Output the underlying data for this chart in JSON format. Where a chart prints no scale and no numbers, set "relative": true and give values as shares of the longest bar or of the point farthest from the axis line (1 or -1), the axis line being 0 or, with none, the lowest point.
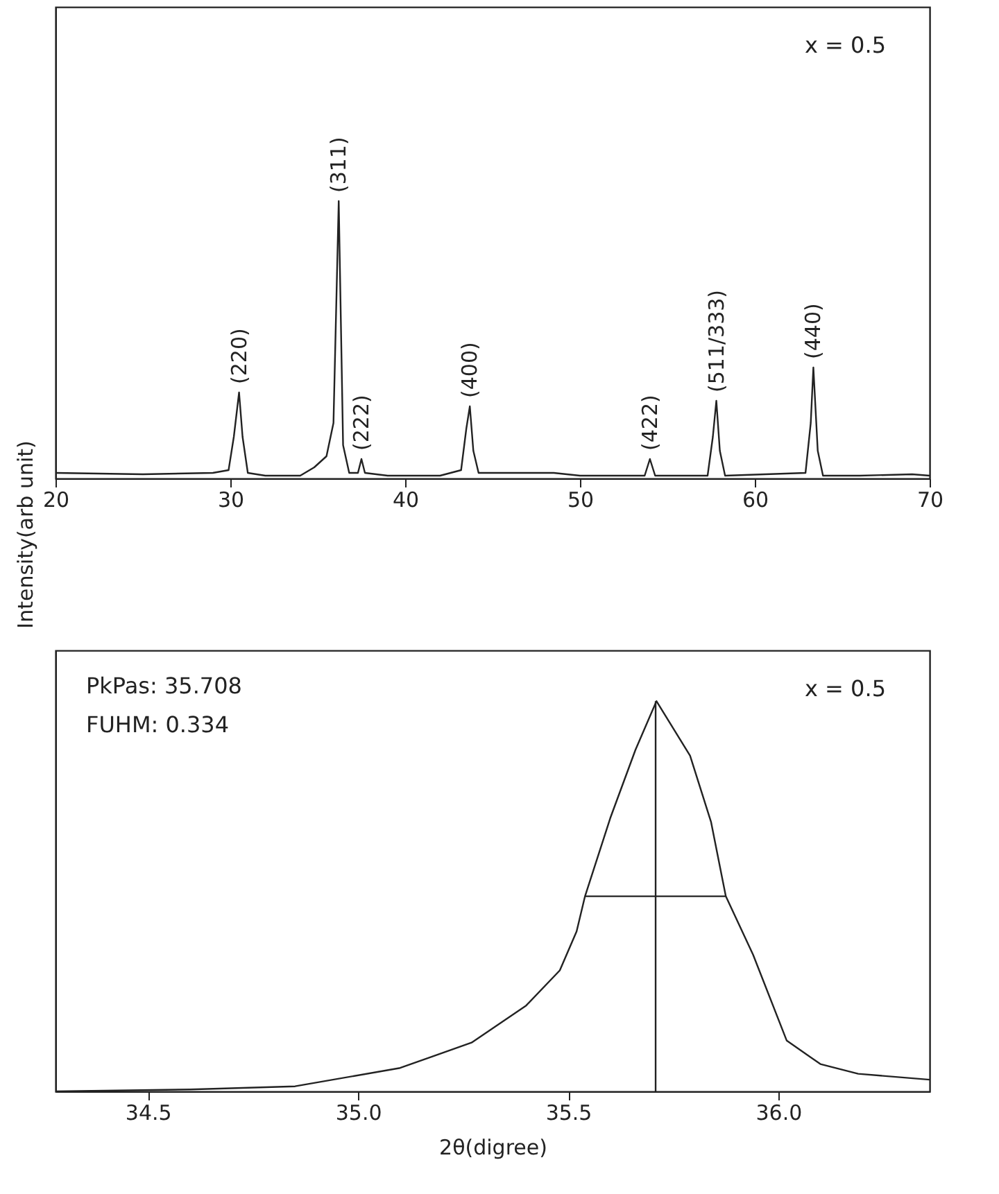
{
  "chart_data": [
    {
      "type": "line",
      "relative": true,
      "ylabel": "Intensity(arb unit)",
      "xlim": [
        20,
        70
      ],
      "xticks": [
        20,
        30,
        40,
        50,
        60,
        70
      ],
      "tick_labels": "x",
      "grid": false,
      "marker": "none",
      "line_style": "solid",
      "series": [
        {
          "color": "#222222",
          "x": [
            20,
            25,
            29,
            29.9,
            30.2,
            30.5,
            30.7,
            31.0,
            32,
            34,
            34.8,
            35.5,
            35.9,
            36.2,
            36.45,
            36.8,
            37.3,
            37.5,
            37.7,
            39,
            42,
            43.2,
            43.5,
            43.7,
            43.9,
            44.2,
            48.5,
            50,
            53.7,
            54.0,
            54.3,
            57.3,
            57.6,
            57.8,
            58.0,
            58.3,
            62.9,
            63.2,
            63.35,
            63.6,
            63.9,
            66,
            69,
            70
          ],
          "values": [
            0.02,
            0.015,
            0.02,
            0.03,
            0.15,
            0.31,
            0.15,
            0.02,
            0.01,
            0.01,
            0.04,
            0.08,
            0.2,
            1.0,
            0.12,
            0.02,
            0.02,
            0.07,
            0.02,
            0.01,
            0.01,
            0.03,
            0.18,
            0.26,
            0.1,
            0.02,
            0.02,
            0.01,
            0.01,
            0.07,
            0.01,
            0.01,
            0.15,
            0.28,
            0.1,
            0.01,
            0.02,
            0.2,
            0.4,
            0.1,
            0.01,
            0.01,
            0.015,
            0.01
          ]
        }
      ],
      "annotations": [
        "x = 0.5",
        {
          "text": "(220)",
          "x": 30.5,
          "y": 0.31
        },
        {
          "text": "(311)",
          "x": 36.2,
          "y": 1.0
        },
        {
          "text": "(222)",
          "x": 37.5,
          "y": 0.07
        },
        {
          "text": "(400)",
          "x": 43.7,
          "y": 0.26
        },
        {
          "text": "(422)",
          "x": 54.0,
          "y": 0.07
        },
        {
          "text": "(511/333)",
          "x": 57.8,
          "y": 0.28
        },
        {
          "text": "(440)",
          "x": 63.35,
          "y": 0.4
        }
      ]
    },
    {
      "type": "line",
      "relative": true,
      "xlabel": "2θ(digree)",
      "xlim": [
        34.28,
        36.36
      ],
      "xticks": [
        34.5,
        {
          "value": 35.0,
          "label": "35.0"
        },
        35.5,
        {
          "value": 36.0,
          "label": "36.0"
        }
      ],
      "tick_labels": "x",
      "grid": false,
      "marker": "none",
      "line_style": "solid",
      "series": [
        {
          "color": "#222222",
          "x": [
            34.28,
            34.6,
            34.85,
            35.1,
            35.27,
            35.4,
            35.48,
            35.52,
            35.54,
            35.6,
            35.66,
            35.71,
            35.79,
            35.84,
            35.875,
            35.94,
            36.02,
            36.1,
            36.19,
            36.36
          ],
          "values": [
            0.0,
            0.005,
            0.013,
            0.06,
            0.125,
            0.22,
            0.31,
            0.41,
            0.5,
            0.7,
            0.875,
            1.0,
            0.86,
            0.69,
            0.5,
            0.35,
            0.13,
            0.07,
            0.045,
            0.03
          ]
        },
        {
          "color": "#222222",
          "x": [
            35.541,
            35.875
          ],
          "values": [
            0.5,
            0.5
          ]
        },
        {
          "color": "#222222",
          "x": [
            35.708,
            35.708
          ],
          "values": [
            0.0,
            1.0
          ]
        }
      ],
      "annotations": [
        "PkPas: 35.708",
        "FUHM: 0.334",
        "x = 0.5"
      ]
    }
  ]
}
